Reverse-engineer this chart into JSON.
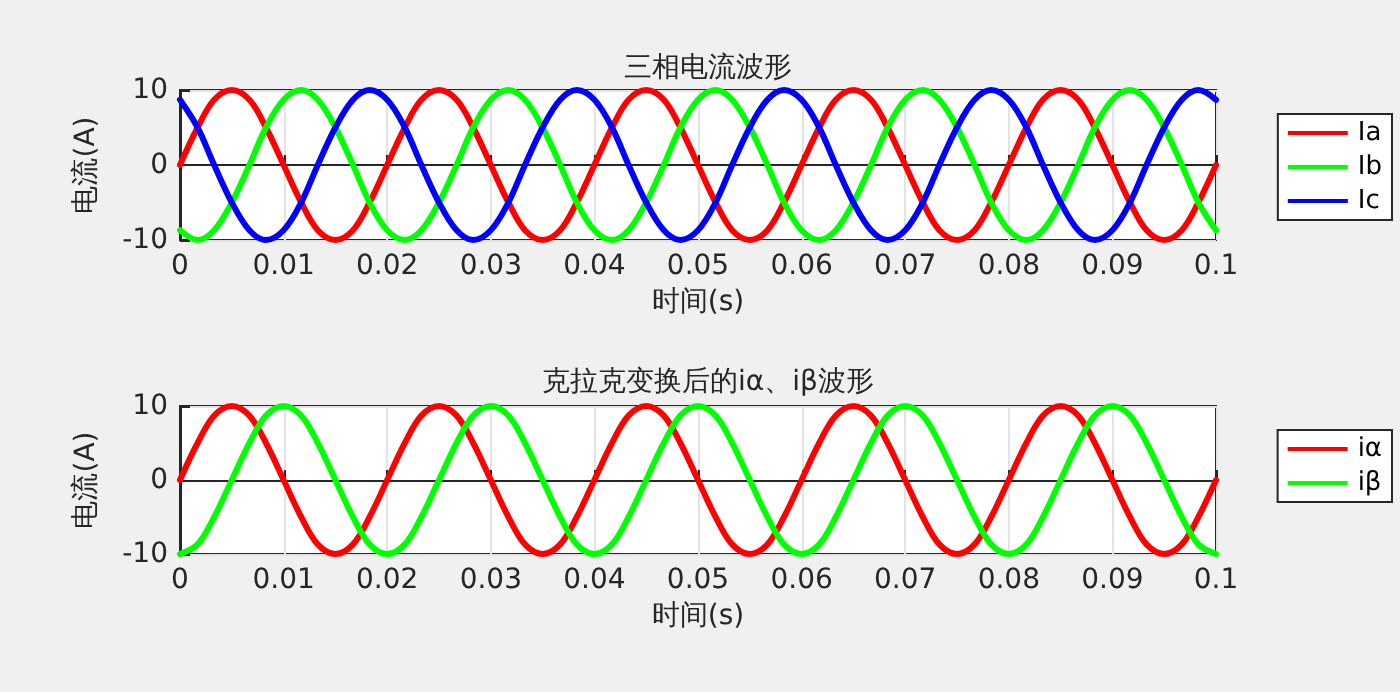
{
  "chart_data": [
    {
      "type": "line",
      "title": "三相电流波形",
      "xlabel": "时间(s)",
      "ylabel": "电流(A)",
      "x": [
        0,
        0.0017,
        0.0033,
        0.005,
        0.0067,
        0.0083,
        0.01,
        0.0117,
        0.0133,
        0.015,
        0.0167,
        0.0183,
        0.02,
        0.0217,
        0.0233,
        0.025,
        0.0267,
        0.0283,
        0.03,
        0.0317,
        0.0333,
        0.035,
        0.0367,
        0.0383,
        0.04,
        0.0417,
        0.0433,
        0.045,
        0.0467,
        0.0483,
        0.05,
        0.0517,
        0.0533,
        0.055,
        0.0567,
        0.0583,
        0.06,
        0.0617,
        0.0633,
        0.065,
        0.0667,
        0.0683,
        0.07,
        0.0717,
        0.0733,
        0.075,
        0.0767,
        0.0783,
        0.08,
        0.0817,
        0.0833,
        0.085,
        0.0867,
        0.0883,
        0.09,
        0.0917,
        0.0933,
        0.095,
        0.0967,
        0.0983,
        0.1
      ],
      "series": [
        {
          "name": "Ia",
          "color": "#ff0000",
          "values": [
            0,
            5,
            8.7,
            10,
            8.7,
            5,
            0,
            -5,
            -8.7,
            -10,
            -8.7,
            -5,
            0,
            5,
            8.7,
            10,
            8.7,
            5,
            0,
            -5,
            -8.7,
            -10,
            -8.7,
            -5,
            0,
            5,
            8.7,
            10,
            8.7,
            5,
            0,
            -5,
            -8.7,
            -10,
            -8.7,
            -5,
            0,
            5,
            8.7,
            10,
            8.7,
            5,
            0,
            -5,
            -8.7,
            -10,
            -8.7,
            -5,
            0,
            5,
            8.7,
            10,
            8.7,
            5,
            0,
            -5,
            -8.7,
            -10,
            -8.7,
            -5,
            0
          ]
        },
        {
          "name": "Ib",
          "color": "#00ff00",
          "values": [
            -8.7,
            -10,
            -8.7,
            -5,
            0,
            5,
            8.7,
            10,
            8.7,
            5,
            0,
            -5,
            -8.7,
            -10,
            -8.7,
            -5,
            0,
            5,
            8.7,
            10,
            8.7,
            5,
            0,
            -5,
            -8.7,
            -10,
            -8.7,
            -5,
            0,
            5,
            8.7,
            10,
            8.7,
            5,
            0,
            -5,
            -8.7,
            -10,
            -8.7,
            -5,
            0,
            5,
            8.7,
            10,
            8.7,
            5,
            0,
            -5,
            -8.7,
            -10,
            -8.7,
            -5,
            0,
            5,
            8.7,
            10,
            8.7,
            5,
            0,
            -5,
            -8.7
          ]
        },
        {
          "name": "Ic",
          "color": "#0000ff",
          "values": [
            8.7,
            5,
            0,
            -5,
            -8.7,
            -10,
            -8.7,
            -5,
            0,
            5,
            8.7,
            10,
            8.7,
            5,
            0,
            -5,
            -8.7,
            -10,
            -8.7,
            -5,
            0,
            5,
            8.7,
            10,
            8.7,
            5,
            0,
            -5,
            -8.7,
            -10,
            -8.7,
            -5,
            0,
            5,
            8.7,
            10,
            8.7,
            5,
            0,
            -5,
            -8.7,
            -10,
            -8.7,
            -5,
            0,
            5,
            8.7,
            10,
            8.7,
            5,
            0,
            -5,
            -8.7,
            -10,
            -8.7,
            -5,
            0,
            5,
            8.7,
            10,
            8.7
          ]
        }
      ],
      "xlim": [
        0,
        0.1
      ],
      "xticks": [
        0,
        0.01,
        0.02,
        0.03,
        0.04,
        0.05,
        0.06,
        0.07,
        0.08,
        0.09,
        0.1
      ],
      "ylim": [
        -10,
        10
      ],
      "yticks": [
        -10,
        0,
        10
      ],
      "grid": true,
      "legend": "right",
      "marker": "none",
      "line_style": "solid"
    },
    {
      "type": "line",
      "title": "克拉克变换后的iα、iβ波形",
      "xlabel": "时间(s)",
      "ylabel": "电流(A)",
      "x": [
        0,
        0.0017,
        0.0033,
        0.005,
        0.0067,
        0.0083,
        0.01,
        0.0117,
        0.0133,
        0.015,
        0.0167,
        0.0183,
        0.02,
        0.0217,
        0.0233,
        0.025,
        0.0267,
        0.0283,
        0.03,
        0.0317,
        0.0333,
        0.035,
        0.0367,
        0.0383,
        0.04,
        0.0417,
        0.0433,
        0.045,
        0.0467,
        0.0483,
        0.05,
        0.0517,
        0.0533,
        0.055,
        0.0567,
        0.0583,
        0.06,
        0.0617,
        0.0633,
        0.065,
        0.0667,
        0.0683,
        0.07,
        0.0717,
        0.0733,
        0.075,
        0.0767,
        0.0783,
        0.08,
        0.0817,
        0.0833,
        0.085,
        0.0867,
        0.0883,
        0.09,
        0.0917,
        0.0933,
        0.095,
        0.0967,
        0.0983,
        0.1
      ],
      "series": [
        {
          "name": "iα",
          "color": "#ff0000",
          "values": [
            0,
            5,
            8.7,
            10,
            8.7,
            5,
            0,
            -5,
            -8.7,
            -10,
            -8.7,
            -5,
            0,
            5,
            8.7,
            10,
            8.7,
            5,
            0,
            -5,
            -8.7,
            -10,
            -8.7,
            -5,
            0,
            5,
            8.7,
            10,
            8.7,
            5,
            0,
            -5,
            -8.7,
            -10,
            -8.7,
            -5,
            0,
            5,
            8.7,
            10,
            8.7,
            5,
            0,
            -5,
            -8.7,
            -10,
            -8.7,
            -5,
            0,
            5,
            8.7,
            10,
            8.7,
            5,
            0,
            -5,
            -8.7,
            -10,
            -8.7,
            -5,
            0
          ]
        },
        {
          "name": "iβ",
          "color": "#00ff00",
          "values": [
            -10,
            -8.7,
            -5,
            0,
            5,
            8.7,
            10,
            8.7,
            5,
            0,
            -5,
            -8.7,
            -10,
            -8.7,
            -5,
            0,
            5,
            8.7,
            10,
            8.7,
            5,
            0,
            -5,
            -8.7,
            -10,
            -8.7,
            -5,
            0,
            5,
            8.7,
            10,
            8.7,
            5,
            0,
            -5,
            -8.7,
            -10,
            -8.7,
            -5,
            0,
            5,
            8.7,
            10,
            8.7,
            5,
            0,
            -5,
            -8.7,
            -10,
            -8.7,
            -5,
            0,
            5,
            8.7,
            10,
            8.7,
            5,
            0,
            -5,
            -8.7,
            -10
          ]
        }
      ],
      "xlim": [
        0,
        0.1
      ],
      "xticks": [
        0,
        0.01,
        0.02,
        0.03,
        0.04,
        0.05,
        0.06,
        0.07,
        0.08,
        0.09,
        0.1
      ],
      "ylim": [
        -10,
        10
      ],
      "yticks": [
        -10,
        0,
        10
      ],
      "grid": true,
      "legend": "right",
      "marker": "none",
      "line_style": "solid"
    }
  ]
}
